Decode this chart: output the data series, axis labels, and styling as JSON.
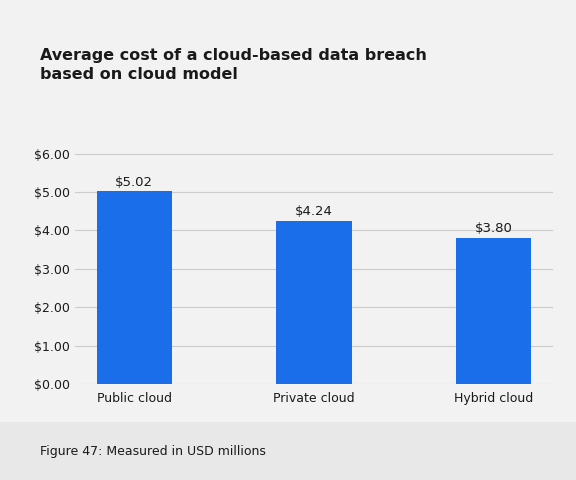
{
  "title_line1": "Average cost of a cloud-based data breach",
  "title_line2": "based on cloud model",
  "categories": [
    "Public cloud",
    "Private cloud",
    "Hybrid cloud"
  ],
  "values": [
    5.02,
    4.24,
    3.8
  ],
  "bar_color": "#1a6eea",
  "outer_bg_color": "#e8e8e8",
  "card_bg_color": "#f2f2f2",
  "plot_bg_color": "#f2f2f2",
  "ylim": [
    0,
    6.5
  ],
  "yticks": [
    0.0,
    1.0,
    2.0,
    3.0,
    4.0,
    5.0,
    6.0
  ],
  "ytick_labels": [
    "$0.00",
    "$1.00",
    "$2.00",
    "$3.00",
    "$4.00",
    "$5.00",
    "$6.00"
  ],
  "caption": "Figure 47: Measured in USD millions",
  "title_fontsize": 11.5,
  "tick_fontsize": 9,
  "caption_fontsize": 9,
  "bar_label_fontsize": 9.5,
  "grid_color": "#cccccc",
  "text_color": "#1a1a1a",
  "caption_color": "#1a1a1a"
}
